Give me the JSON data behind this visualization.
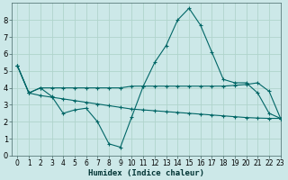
{
  "xlabel": "Humidex (Indice chaleur)",
  "bg_color": "#cce8e8",
  "grid_color": "#b0d4cc",
  "line_color": "#006666",
  "line1_x": [
    0,
    1,
    2,
    3,
    4,
    5,
    6,
    7,
    8,
    9,
    10,
    11,
    12,
    13,
    14,
    15,
    16,
    17,
    18,
    19,
    20,
    21,
    22,
    23
  ],
  "line1_y": [
    5.3,
    3.7,
    4.0,
    3.5,
    2.5,
    2.7,
    2.8,
    2.0,
    0.7,
    0.5,
    2.3,
    4.1,
    5.5,
    6.5,
    8.0,
    8.7,
    7.7,
    6.1,
    4.5,
    4.3,
    4.3,
    3.7,
    2.5,
    2.2
  ],
  "line2_x": [
    0,
    1,
    2,
    3,
    4,
    5,
    6,
    7,
    8,
    9,
    10,
    11,
    12,
    13,
    14,
    15,
    16,
    17,
    18,
    19,
    20,
    21,
    22,
    23
  ],
  "line2_y": [
    5.3,
    3.7,
    4.0,
    4.0,
    4.0,
    4.0,
    4.0,
    4.0,
    4.0,
    4.0,
    4.1,
    4.1,
    4.1,
    4.1,
    4.1,
    4.1,
    4.1,
    4.1,
    4.1,
    4.15,
    4.2,
    4.3,
    3.8,
    2.2
  ],
  "line3_x": [
    0,
    1,
    2,
    3,
    4,
    5,
    6,
    7,
    8,
    9,
    10,
    11,
    12,
    13,
    14,
    15,
    16,
    17,
    18,
    19,
    20,
    21,
    22,
    23
  ],
  "line3_y": [
    5.3,
    3.7,
    3.55,
    3.45,
    3.35,
    3.25,
    3.15,
    3.05,
    2.95,
    2.85,
    2.75,
    2.7,
    2.65,
    2.6,
    2.55,
    2.5,
    2.45,
    2.4,
    2.35,
    2.3,
    2.25,
    2.22,
    2.2,
    2.2
  ],
  "ylim": [
    0,
    9
  ],
  "xlim": [
    -0.5,
    23
  ],
  "yticks": [
    0,
    1,
    2,
    3,
    4,
    5,
    6,
    7,
    8
  ],
  "xticks": [
    0,
    1,
    2,
    3,
    4,
    5,
    6,
    7,
    8,
    9,
    10,
    11,
    12,
    13,
    14,
    15,
    16,
    17,
    18,
    19,
    20,
    21,
    22,
    23
  ],
  "xlabel_fontsize": 6.5,
  "tick_fontsize": 5.5
}
